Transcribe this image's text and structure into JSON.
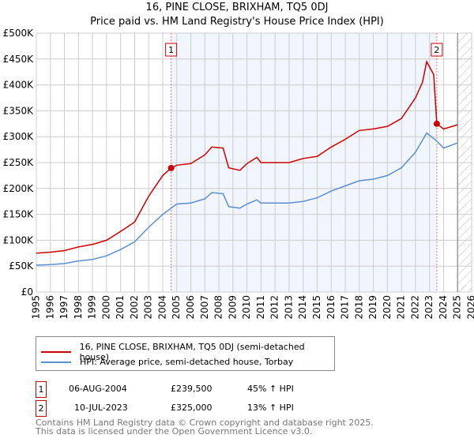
{
  "title": "16, PINE CLOSE, BRIXHAM, TQ5 0DJ",
  "subtitle": "Price paid vs. HM Land Registry's House Price Index (HPI)",
  "chart_data": {
    "type": "line",
    "title": "16, PINE CLOSE, BRIXHAM, TQ5 0DJ",
    "subtitle": "Price paid vs. HM Land Registry's House Price Index (HPI)",
    "xlim": [
      1995,
      2026
    ],
    "ylim": [
      0,
      500000
    ],
    "yticks": [
      {
        "v": 0,
        "label": "£0"
      },
      {
        "v": 50000,
        "label": "£50K"
      },
      {
        "v": 100000,
        "label": "£100K"
      },
      {
        "v": 150000,
        "label": "£150K"
      },
      {
        "v": 200000,
        "label": "£200K"
      },
      {
        "v": 250000,
        "label": "£250K"
      },
      {
        "v": 300000,
        "label": "£300K"
      },
      {
        "v": 350000,
        "label": "£350K"
      },
      {
        "v": 400000,
        "label": "£400K"
      },
      {
        "v": 450000,
        "label": "£450K"
      },
      {
        "v": 500000,
        "label": "£500K"
      }
    ],
    "xticks": [
      "1995",
      "1996",
      "1997",
      "1998",
      "1999",
      "2000",
      "2001",
      "2002",
      "2003",
      "2004",
      "2005",
      "2006",
      "2007",
      "2008",
      "2009",
      "2010",
      "2011",
      "2012",
      "2013",
      "2014",
      "2015",
      "2016",
      "2017",
      "2018",
      "2019",
      "2020",
      "2021",
      "2022",
      "2023",
      "2024",
      "2025",
      "2026"
    ],
    "grid": true,
    "shaded_range": [
      2004.6,
      2023.52
    ],
    "hatched_from": 2025,
    "series": [
      {
        "name": "16, PINE CLOSE, BRIXHAM, TQ5 0DJ (semi-detached house)",
        "color": "#cc0000",
        "x": [
          1995,
          1996,
          1997,
          1998,
          1999,
          2000,
          2001,
          2002,
          2003,
          2004,
          2004.6,
          2005,
          2006,
          2007,
          2007.5,
          2008.3,
          2008.7,
          2009.5,
          2010,
          2010.7,
          2011,
          2012,
          2013,
          2014,
          2015,
          2016,
          2017,
          2018,
          2019,
          2020,
          2021,
          2022,
          2022.5,
          2022.8,
          2023.3,
          2023.52,
          2024,
          2025
        ],
        "y": [
          75000,
          77000,
          80000,
          87000,
          92000,
          100000,
          117000,
          135000,
          185000,
          225000,
          239500,
          245000,
          248000,
          265000,
          280000,
          278000,
          240000,
          235000,
          248000,
          260000,
          250000,
          250000,
          250000,
          258000,
          262000,
          280000,
          295000,
          312000,
          315000,
          320000,
          335000,
          375000,
          405000,
          445000,
          420000,
          325000,
          315000,
          323000
        ]
      },
      {
        "name": "HPI: Average price, semi-detached house, Torbay",
        "color": "#5b8fd0",
        "x": [
          1995,
          1996,
          1997,
          1998,
          1999,
          2000,
          2001,
          2002,
          2003,
          2004,
          2005,
          2006,
          2007,
          2007.5,
          2008.3,
          2008.7,
          2009.5,
          2010,
          2010.7,
          2011,
          2012,
          2013,
          2014,
          2015,
          2016,
          2017,
          2018,
          2019,
          2020,
          2021,
          2022,
          2022.8,
          2023.5,
          2024,
          2025
        ],
        "y": [
          52000,
          53000,
          55000,
          60000,
          63000,
          70000,
          82000,
          97000,
          125000,
          150000,
          170000,
          172000,
          180000,
          192000,
          190000,
          165000,
          162000,
          170000,
          178000,
          172000,
          172000,
          172000,
          175000,
          182000,
          195000,
          205000,
          215000,
          218000,
          225000,
          240000,
          270000,
          307000,
          292000,
          278000,
          288000
        ]
      }
    ],
    "sales": [
      {
        "label": "1",
        "x": 2004.6,
        "price": 239500
      },
      {
        "label": "2",
        "x": 2023.52,
        "price": 325000
      }
    ]
  },
  "legend": {
    "red": "16, PINE CLOSE, BRIXHAM, TQ5 0DJ (semi-detached house)",
    "blue": "HPI: Average price, semi-detached house, Torbay"
  },
  "transactions": [
    {
      "num": "1",
      "date": "06-AUG-2004",
      "price": "£239,500",
      "hpi": "45% ↑ HPI"
    },
    {
      "num": "2",
      "date": "10-JUL-2023",
      "price": "£325,000",
      "hpi": "13% ↑ HPI"
    }
  ],
  "footer": {
    "line1": "Contains HM Land Registry data © Crown copyright and database right 2025.",
    "line2": "This data is licensed under the Open Government Licence v3.0."
  }
}
